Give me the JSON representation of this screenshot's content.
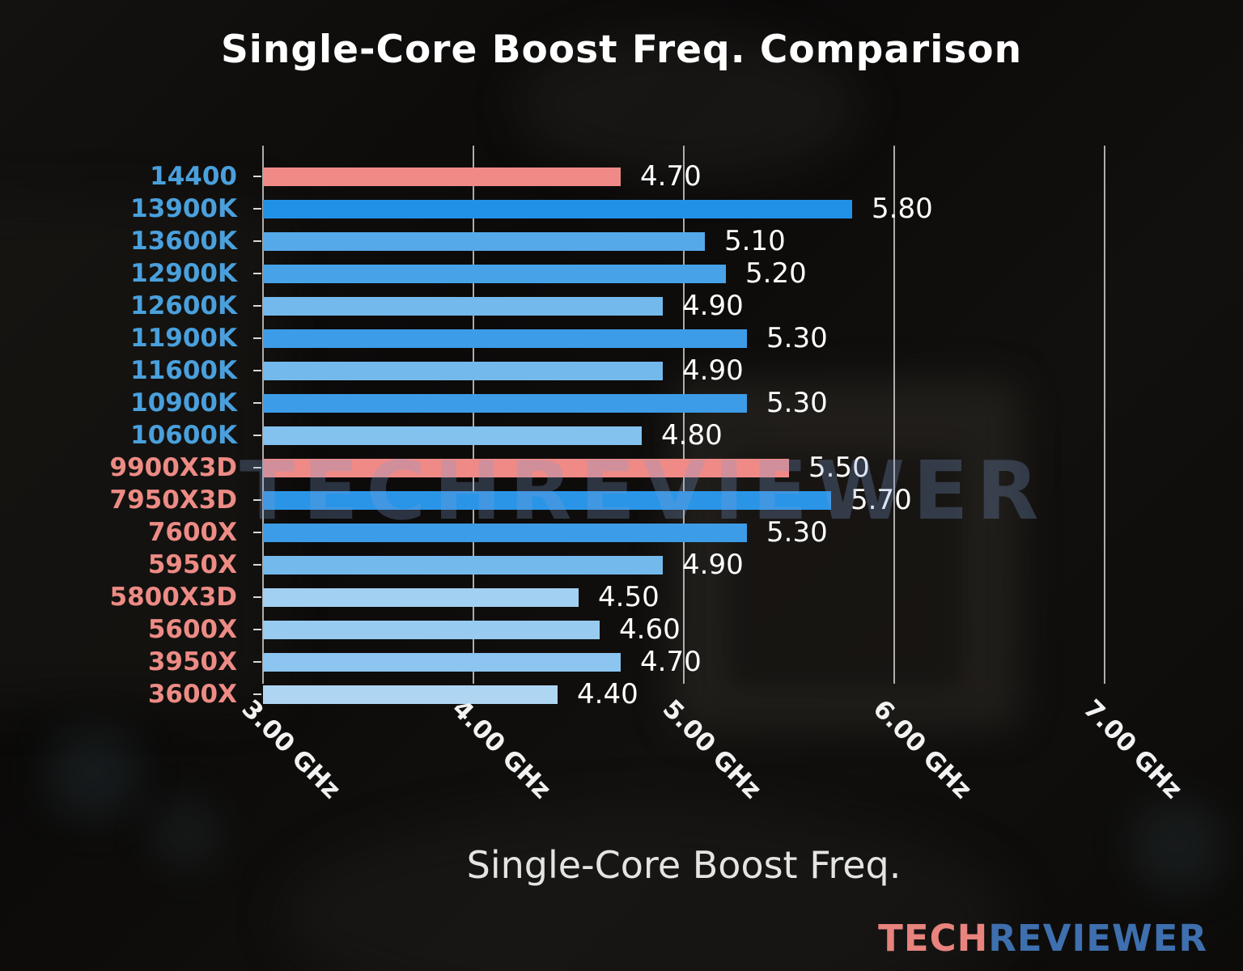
{
  "title": "Single-Core Boost Freq. Comparison",
  "watermark": {
    "text": "TECHREVIEWER"
  },
  "brand": {
    "tech": "TECH",
    "reviewer": "REVIEWER",
    "tech_color": "#e8837d",
    "reviewer_color": "#3e6fae"
  },
  "chart_data": {
    "type": "bar",
    "orientation": "horizontal",
    "title": "Single-Core Boost Freq. Comparison",
    "xlabel": "Single-Core Boost Freq.",
    "xlim": [
      3.0,
      7.0
    ],
    "grid": true,
    "legend": false,
    "highlight_color": "#f08a86",
    "x_ticks": [
      {
        "value": 3.0,
        "label": "3.00 GHz"
      },
      {
        "value": 4.0,
        "label": "4.00 GHz"
      },
      {
        "value": 5.0,
        "label": "5.00 GHz"
      },
      {
        "value": 6.0,
        "label": "6.00 GHz"
      },
      {
        "value": 7.0,
        "label": "7.00 GHz"
      }
    ],
    "bars": [
      {
        "label": "14400",
        "value": 4.7,
        "value_label": "4.70",
        "bar_color": "#f08a86",
        "label_color": "#4aa0dc"
      },
      {
        "label": "13900K",
        "value": 5.8,
        "value_label": "5.80",
        "bar_color": "#2191e7",
        "label_color": "#4aa0dc"
      },
      {
        "label": "13600K",
        "value": 5.1,
        "value_label": "5.10",
        "bar_color": "#55a9e9",
        "label_color": "#4aa0dc"
      },
      {
        "label": "12900K",
        "value": 5.2,
        "value_label": "5.20",
        "bar_color": "#47a2e8",
        "label_color": "#4aa0dc"
      },
      {
        "label": "12600K",
        "value": 4.9,
        "value_label": "4.90",
        "bar_color": "#74b9ec",
        "label_color": "#4aa0dc"
      },
      {
        "label": "11900K",
        "value": 5.3,
        "value_label": "5.30",
        "bar_color": "#3c9ce7",
        "label_color": "#4aa0dc"
      },
      {
        "label": "11600K",
        "value": 4.9,
        "value_label": "4.90",
        "bar_color": "#74b9ec",
        "label_color": "#4aa0dc"
      },
      {
        "label": "10900K",
        "value": 5.3,
        "value_label": "5.30",
        "bar_color": "#3c9ce7",
        "label_color": "#4aa0dc"
      },
      {
        "label": "10600K",
        "value": 4.8,
        "value_label": "4.80",
        "bar_color": "#83c1ee",
        "label_color": "#4aa0dc"
      },
      {
        "label": "9900X3D",
        "value": 5.5,
        "value_label": "5.50",
        "bar_color": "#f08a86",
        "label_color": "#ed8b85"
      },
      {
        "label": "7950X3D",
        "value": 5.7,
        "value_label": "5.70",
        "bar_color": "#2a95e7",
        "label_color": "#ed8b85"
      },
      {
        "label": "7600X",
        "value": 5.3,
        "value_label": "5.30",
        "bar_color": "#3c9ce7",
        "label_color": "#ed8b85"
      },
      {
        "label": "5950X",
        "value": 4.9,
        "value_label": "4.90",
        "bar_color": "#74b9ec",
        "label_color": "#ed8b85"
      },
      {
        "label": "5800X3D",
        "value": 4.5,
        "value_label": "4.50",
        "bar_color": "#a2d0f2",
        "label_color": "#ed8b85"
      },
      {
        "label": "5600X",
        "value": 4.6,
        "value_label": "4.60",
        "bar_color": "#97cbf0",
        "label_color": "#ed8b85"
      },
      {
        "label": "3950X",
        "value": 4.7,
        "value_label": "4.70",
        "bar_color": "#8cc5ef",
        "label_color": "#ed8b85"
      },
      {
        "label": "3600X",
        "value": 4.4,
        "value_label": "4.40",
        "bar_color": "#aed6f3",
        "label_color": "#ed8b85"
      }
    ]
  }
}
